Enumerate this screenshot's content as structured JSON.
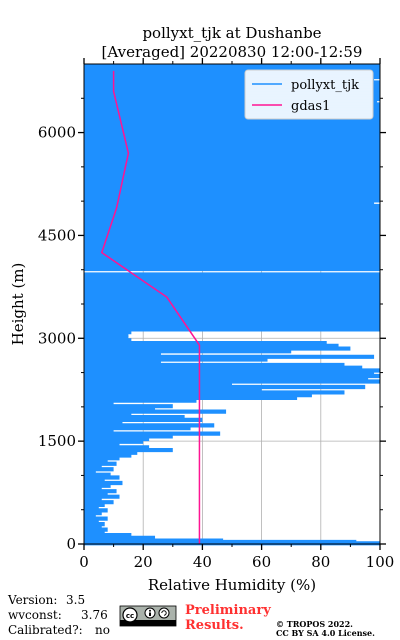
{
  "chart_data": {
    "type": "line",
    "title": "pollyxt_tjk at Dushanbe",
    "subtitle": "[Averaged] 20220830 12:00-12:59",
    "xlabel": "Relative Humidity (%)",
    "ylabel": "Height (m)",
    "xlim": [
      0,
      100
    ],
    "ylim": [
      0,
      7000
    ],
    "x_ticks": [
      0,
      20,
      40,
      60,
      80,
      100
    ],
    "y_ticks": [
      0,
      1500,
      3000,
      4500,
      6000
    ],
    "grid": true,
    "legend_position": "top-right",
    "series": [
      {
        "name": "pollyxt_tjk",
        "color": "#1e90ff",
        "style": "horizontal-lines",
        "points": [
          [
            100,
            6970
          ],
          [
            100,
            6930
          ],
          [
            100,
            6890
          ],
          [
            100,
            6850
          ],
          [
            100,
            6810
          ],
          [
            98,
            6770
          ],
          [
            100,
            6730
          ],
          [
            100,
            6690
          ],
          [
            100,
            6650
          ],
          [
            100,
            6610
          ],
          [
            100,
            6570
          ],
          [
            100,
            6530
          ],
          [
            100,
            6490
          ],
          [
            99,
            6450
          ],
          [
            100,
            6410
          ],
          [
            100,
            6370
          ],
          [
            100,
            6330
          ],
          [
            100,
            6290
          ],
          [
            100,
            6250
          ],
          [
            100,
            6210
          ],
          [
            100,
            6170
          ],
          [
            100,
            6130
          ],
          [
            100,
            6090
          ],
          [
            100,
            6050
          ],
          [
            100,
            6010
          ],
          [
            100,
            5970
          ],
          [
            100,
            5930
          ],
          [
            100,
            5890
          ],
          [
            100,
            5850
          ],
          [
            100,
            5810
          ],
          [
            100,
            5770
          ],
          [
            100,
            5730
          ],
          [
            100,
            5690
          ],
          [
            100,
            5650
          ],
          [
            100,
            5610
          ],
          [
            100,
            5570
          ],
          [
            100,
            5530
          ],
          [
            100,
            5490
          ],
          [
            100,
            5450
          ],
          [
            100,
            5410
          ],
          [
            100,
            5370
          ],
          [
            100,
            5330
          ],
          [
            100,
            5290
          ],
          [
            100,
            5250
          ],
          [
            100,
            5210
          ],
          [
            100,
            5170
          ],
          [
            100,
            5130
          ],
          [
            100,
            5090
          ],
          [
            100,
            5050
          ],
          [
            100,
            5010
          ],
          [
            98,
            4970
          ],
          [
            100,
            4930
          ],
          [
            100,
            4890
          ],
          [
            100,
            4850
          ],
          [
            100,
            4810
          ],
          [
            100,
            4770
          ],
          [
            100,
            4730
          ],
          [
            100,
            4690
          ],
          [
            100,
            4650
          ],
          [
            100,
            4610
          ],
          [
            100,
            4570
          ],
          [
            100,
            4530
          ],
          [
            100,
            4490
          ],
          [
            100,
            4450
          ],
          [
            100,
            4410
          ],
          [
            100,
            4370
          ],
          [
            100,
            4330
          ],
          [
            100,
            4290
          ],
          [
            100,
            4250
          ],
          [
            100,
            4210
          ],
          [
            100,
            4170
          ],
          [
            100,
            4130
          ],
          [
            100,
            4090
          ],
          [
            100,
            4050
          ],
          [
            100,
            4010
          ],
          [
            100,
            3930
          ],
          [
            100,
            3890
          ],
          [
            100,
            3850
          ],
          [
            100,
            3810
          ],
          [
            100,
            3770
          ],
          [
            100,
            3730
          ],
          [
            100,
            3690
          ],
          [
            100,
            3650
          ],
          [
            100,
            3610
          ],
          [
            100,
            3570
          ],
          [
            100,
            3530
          ],
          [
            100,
            3490
          ],
          [
            100,
            3450
          ],
          [
            100,
            3410
          ],
          [
            100,
            3370
          ],
          [
            100,
            3330
          ],
          [
            100,
            3290
          ],
          [
            100,
            3250
          ],
          [
            100,
            3210
          ],
          [
            100,
            3170
          ],
          [
            100,
            3130
          ],
          [
            16,
            3090
          ],
          [
            15,
            3050
          ],
          [
            15,
            3010
          ],
          [
            16,
            2970
          ],
          [
            82,
            2930
          ],
          [
            86,
            2890
          ],
          [
            90,
            2850
          ],
          [
            70,
            2810
          ],
          [
            26,
            2770
          ],
          [
            98,
            2730
          ],
          [
            62,
            2690
          ],
          [
            26,
            2650
          ],
          [
            88,
            2610
          ],
          [
            94,
            2570
          ],
          [
            100,
            2530
          ],
          [
            98,
            2490
          ],
          [
            100,
            2450
          ],
          [
            96,
            2410
          ],
          [
            100,
            2370
          ],
          [
            50,
            2330
          ],
          [
            95,
            2290
          ],
          [
            60,
            2250
          ],
          [
            88,
            2210
          ],
          [
            77,
            2170
          ],
          [
            72,
            2130
          ],
          [
            38,
            2090
          ],
          [
            10,
            2050
          ],
          [
            30,
            2010
          ],
          [
            24,
            1970
          ],
          [
            48,
            1930
          ],
          [
            16,
            1890
          ],
          [
            34,
            1850
          ],
          [
            40,
            1810
          ],
          [
            13,
            1770
          ],
          [
            44,
            1730
          ],
          [
            36,
            1690
          ],
          [
            10,
            1650
          ],
          [
            46,
            1610
          ],
          [
            30,
            1570
          ],
          [
            22,
            1530
          ],
          [
            20,
            1490
          ],
          [
            12,
            1450
          ],
          [
            22,
            1410
          ],
          [
            30,
            1370
          ],
          [
            18,
            1330
          ],
          [
            16,
            1290
          ],
          [
            12,
            1250
          ],
          [
            8,
            1210
          ],
          [
            11,
            1170
          ],
          [
            6,
            1130
          ],
          [
            10,
            1090
          ],
          [
            4,
            1050
          ],
          [
            9,
            1010
          ],
          [
            12,
            970
          ],
          [
            7,
            930
          ],
          [
            13,
            890
          ],
          [
            9,
            850
          ],
          [
            6,
            810
          ],
          [
            11,
            770
          ],
          [
            8,
            730
          ],
          [
            12,
            690
          ],
          [
            6,
            650
          ],
          [
            10,
            610
          ],
          [
            7,
            570
          ],
          [
            5,
            530
          ],
          [
            8,
            490
          ],
          [
            6,
            450
          ],
          [
            4,
            410
          ],
          [
            8,
            370
          ],
          [
            5,
            330
          ],
          [
            7,
            290
          ],
          [
            6,
            250
          ],
          [
            8,
            210
          ],
          [
            7,
            170
          ],
          [
            16,
            130
          ],
          [
            24,
            90
          ],
          [
            47,
            50
          ],
          [
            92,
            30
          ],
          [
            100,
            10
          ]
        ]
      },
      {
        "name": "gdas1",
        "color": "#ff1493",
        "style": "line",
        "points": [
          [
            39,
            0
          ],
          [
            39,
            1500
          ],
          [
            39,
            2900
          ],
          [
            28,
            3600
          ],
          [
            6,
            4250
          ],
          [
            11,
            4900
          ],
          [
            15,
            5700
          ],
          [
            10,
            6600
          ],
          [
            10,
            6900
          ]
        ]
      }
    ]
  },
  "footer": {
    "version_label": "Version:",
    "version_value": "3.5",
    "wvconst_label": "wvconst:",
    "wvconst_value": "3.76",
    "calibrated_label": "Calibrated?:",
    "calibrated_value": "no",
    "license_badge": "cc-by-sa-badge",
    "preliminary_line1": "Preliminary",
    "preliminary_line2": "Results.",
    "copyright_line1": "© TROPOS 2022.",
    "copyright_line2": "CC BY SA 4.0 License."
  }
}
